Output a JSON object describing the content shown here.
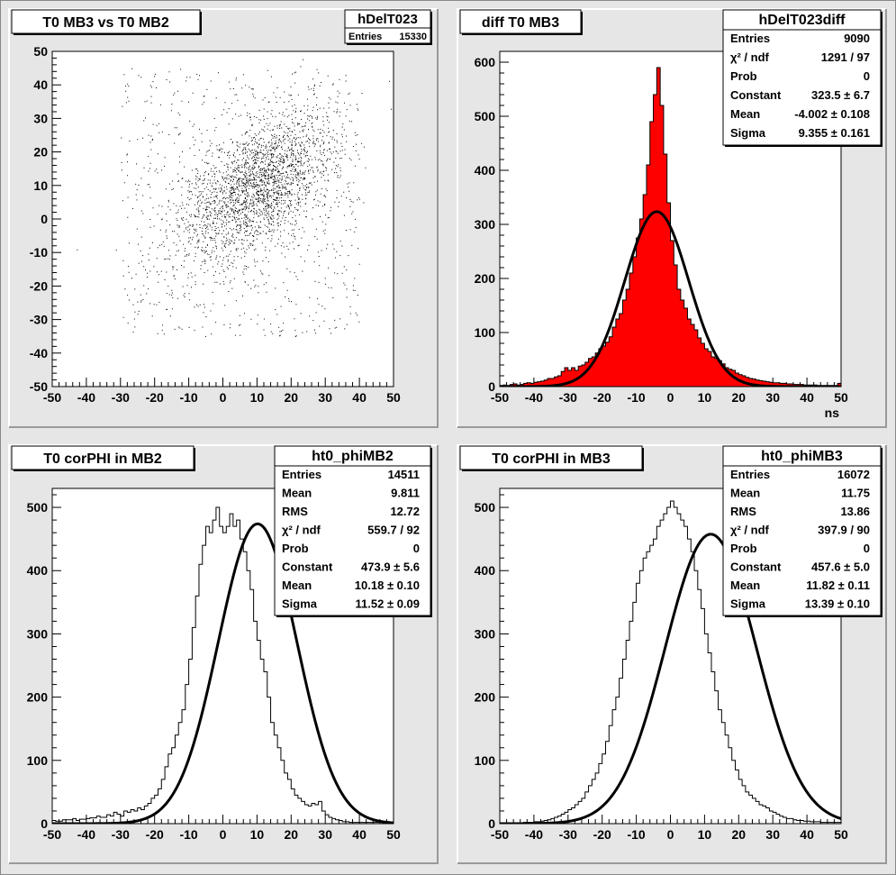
{
  "chart_data": [
    {
      "type": "scatter",
      "title": "T0 MB3 vs T0 MB2",
      "xlabel": "",
      "ylabel": "",
      "xlim": [
        -50,
        50
      ],
      "ylim": [
        -50,
        50
      ],
      "xticks": [
        -50,
        -40,
        -30,
        -20,
        -10,
        0,
        10,
        20,
        30,
        40,
        50
      ],
      "yticks": [
        -50,
        -40,
        -30,
        -20,
        -10,
        0,
        10,
        20,
        30,
        40,
        50
      ],
      "stats": {
        "name": "hDelT023",
        "rows": [
          {
            "label": "Entries",
            "value": "15330"
          }
        ]
      },
      "cluster": {
        "n_points": 15330,
        "mean_x": 10,
        "mean_y": 10,
        "sigma_x": 11,
        "sigma_y": 11,
        "correlation": 0.5
      }
    },
    {
      "type": "bar",
      "title": "diff T0 MB3",
      "xlabel": "ns",
      "ylabel": "",
      "xlim": [
        -50,
        50
      ],
      "ylim": [
        0,
        620
      ],
      "xticks": [
        -50,
        -40,
        -30,
        -20,
        -10,
        0,
        10,
        20,
        30,
        40,
        50
      ],
      "yticks": [
        0,
        100,
        200,
        300,
        400,
        500,
        600
      ],
      "fill": "#ff0000",
      "bin_width": 1,
      "x": [
        -50,
        -49,
        -48,
        -47,
        -46,
        -45,
        -44,
        -43,
        -42,
        -41,
        -40,
        -39,
        -38,
        -37,
        -36,
        -35,
        -34,
        -33,
        -32,
        -31,
        -30,
        -29,
        -28,
        -27,
        -26,
        -25,
        -24,
        -23,
        -22,
        -21,
        -20,
        -19,
        -18,
        -17,
        -16,
        -15,
        -14,
        -13,
        -12,
        -11,
        -10,
        -9,
        -8,
        -7,
        -6,
        -5,
        -4,
        -3,
        -2,
        -1,
        0,
        1,
        2,
        3,
        4,
        5,
        6,
        7,
        8,
        9,
        10,
        11,
        12,
        13,
        14,
        15,
        16,
        17,
        18,
        19,
        20,
        21,
        22,
        23,
        24,
        25,
        26,
        27,
        28,
        29,
        30,
        31,
        32,
        33,
        34,
        35,
        36,
        37,
        38,
        39,
        40,
        41,
        42,
        43,
        44,
        45,
        46,
        47,
        48,
        49
      ],
      "values": [
        2,
        3,
        2,
        4,
        5,
        3,
        4,
        6,
        7,
        6,
        8,
        9,
        10,
        12,
        15,
        15,
        18,
        20,
        28,
        35,
        30,
        35,
        30,
        38,
        40,
        45,
        52,
        55,
        62,
        70,
        75,
        82,
        92,
        110,
        125,
        135,
        160,
        180,
        210,
        240,
        275,
        310,
        355,
        410,
        490,
        540,
        590,
        520,
        430,
        340,
        270,
        225,
        180,
        160,
        145,
        125,
        115,
        105,
        90,
        80,
        70,
        65,
        55,
        52,
        48,
        42,
        35,
        32,
        30,
        25,
        22,
        20,
        17,
        15,
        14,
        12,
        11,
        10,
        9,
        8,
        7,
        7,
        6,
        6,
        5,
        5,
        4,
        4,
        4,
        3,
        3,
        3,
        3,
        2,
        2,
        2,
        2,
        2,
        2,
        6
      ],
      "fit": {
        "type": "gaussian",
        "constant": 323.5,
        "mean": -4.002,
        "sigma": 9.355
      },
      "stats": {
        "name": "hDelT023diff",
        "rows": [
          {
            "label": "Entries",
            "value": "9090"
          },
          {
            "label": "χ² / ndf",
            "value": "1291 / 97"
          },
          {
            "label": "Prob",
            "value": "0"
          },
          {
            "label": "Constant",
            "value": "323.5 ± 6.7"
          },
          {
            "label": "Mean",
            "value": "-4.002 ± 0.108"
          },
          {
            "label": "Sigma",
            "value": "9.355 ± 0.161"
          }
        ]
      }
    },
    {
      "type": "line",
      "title": "T0 corPHI in MB2",
      "xlabel": "",
      "ylabel": "",
      "xlim": [
        -50,
        50
      ],
      "ylim": [
        0,
        530
      ],
      "xticks": [
        -50,
        -40,
        -30,
        -20,
        -10,
        0,
        10,
        20,
        30,
        40,
        50
      ],
      "yticks": [
        0,
        100,
        200,
        300,
        400,
        500
      ],
      "bin_width": 1,
      "x": [
        -50,
        -49,
        -48,
        -47,
        -46,
        -45,
        -44,
        -43,
        -42,
        -41,
        -40,
        -39,
        -38,
        -37,
        -36,
        -35,
        -34,
        -33,
        -32,
        -31,
        -30,
        -29,
        -28,
        -27,
        -26,
        -25,
        -24,
        -23,
        -22,
        -21,
        -20,
        -19,
        -18,
        -17,
        -16,
        -15,
        -14,
        -13,
        -12,
        -11,
        -10,
        -9,
        -8,
        -7,
        -6,
        -5,
        -4,
        -3,
        -2,
        -1,
        0,
        1,
        2,
        3,
        4,
        5,
        6,
        7,
        8,
        9,
        10,
        11,
        12,
        13,
        14,
        15,
        16,
        17,
        18,
        19,
        20,
        21,
        22,
        23,
        24,
        25,
        26,
        27,
        28,
        29,
        30,
        31,
        32,
        33,
        34,
        35,
        36,
        37,
        38,
        39,
        40,
        41,
        42,
        43,
        44,
        45,
        46,
        47,
        48,
        49
      ],
      "values": [
        5,
        4,
        4,
        6,
        6,
        6,
        8,
        5,
        7,
        7,
        8,
        9,
        9,
        12,
        10,
        10,
        14,
        12,
        18,
        15,
        12,
        20,
        18,
        22,
        20,
        25,
        22,
        28,
        32,
        40,
        45,
        55,
        70,
        90,
        110,
        120,
        140,
        160,
        180,
        220,
        260,
        310,
        360,
        410,
        440,
        470,
        460,
        480,
        500,
        470,
        460,
        470,
        490,
        470,
        480,
        450,
        430,
        400,
        370,
        320,
        290,
        260,
        240,
        200,
        160,
        140,
        120,
        100,
        80,
        70,
        55,
        45,
        40,
        35,
        30,
        28,
        32,
        30,
        35,
        20,
        14,
        10,
        8,
        6,
        5,
        3,
        3,
        2,
        2,
        2,
        2,
        2,
        2,
        2,
        2,
        2,
        2,
        2,
        2,
        2
      ],
      "fit": {
        "type": "gaussian",
        "constant": 473.9,
        "mean": 10.18,
        "sigma": 11.52
      },
      "stats": {
        "name": "ht0_phiMB2",
        "rows": [
          {
            "label": "Entries",
            "value": "14511"
          },
          {
            "label": "Mean",
            "value": "9.811"
          },
          {
            "label": "RMS",
            "value": "12.72"
          },
          {
            "label": "χ² / ndf",
            "value": "559.7 / 92"
          },
          {
            "label": "Prob",
            "value": "0"
          },
          {
            "label": "Constant",
            "value": "473.9 ± 5.6"
          },
          {
            "label": "Mean",
            "value": "10.18 ± 0.10"
          },
          {
            "label": "Sigma",
            "value": "11.52 ± 0.09"
          }
        ]
      }
    },
    {
      "type": "line",
      "title": "T0 corPHI in MB3",
      "xlabel": "",
      "ylabel": "",
      "xlim": [
        -50,
        50
      ],
      "ylim": [
        0,
        530
      ],
      "xticks": [
        -50,
        -40,
        -30,
        -20,
        -10,
        0,
        10,
        20,
        30,
        40,
        50
      ],
      "yticks": [
        0,
        100,
        200,
        300,
        400,
        500
      ],
      "bin_width": 1,
      "x": [
        -50,
        -49,
        -48,
        -47,
        -46,
        -45,
        -44,
        -43,
        -42,
        -41,
        -40,
        -39,
        -38,
        -37,
        -36,
        -35,
        -34,
        -33,
        -32,
        -31,
        -30,
        -29,
        -28,
        -27,
        -26,
        -25,
        -24,
        -23,
        -22,
        -21,
        -20,
        -19,
        -18,
        -17,
        -16,
        -15,
        -14,
        -13,
        -12,
        -11,
        -10,
        -9,
        -8,
        -7,
        -6,
        -5,
        -4,
        -3,
        -2,
        -1,
        0,
        1,
        2,
        3,
        4,
        5,
        6,
        7,
        8,
        9,
        10,
        11,
        12,
        13,
        14,
        15,
        16,
        17,
        18,
        19,
        20,
        21,
        22,
        23,
        24,
        25,
        26,
        27,
        28,
        29,
        30,
        31,
        32,
        33,
        34,
        35,
        36,
        37,
        38,
        39,
        40,
        41,
        42,
        43,
        44,
        45,
        46,
        47,
        48,
        49
      ],
      "values": [
        0,
        0,
        0,
        0,
        1,
        1,
        1,
        2,
        2,
        2,
        3,
        3,
        4,
        5,
        6,
        8,
        10,
        12,
        15,
        18,
        22,
        25,
        30,
        35,
        40,
        50,
        60,
        70,
        80,
        95,
        110,
        130,
        155,
        180,
        200,
        230,
        260,
        290,
        320,
        350,
        380,
        400,
        420,
        430,
        440,
        450,
        470,
        480,
        490,
        500,
        510,
        500,
        490,
        480,
        470,
        450,
        430,
        400,
        370,
        340,
        300,
        270,
        240,
        210,
        180,
        160,
        140,
        120,
        100,
        85,
        70,
        60,
        50,
        45,
        40,
        35,
        30,
        28,
        25,
        20,
        18,
        15,
        12,
        10,
        8,
        8,
        6,
        5,
        5,
        4,
        4,
        3,
        3,
        3,
        2,
        2,
        2,
        2,
        2,
        2
      ],
      "fit": {
        "type": "gaussian",
        "constant": 457.6,
        "mean": 11.82,
        "sigma": 13.39
      },
      "stats": {
        "name": "ht0_phiMB3",
        "rows": [
          {
            "label": "Entries",
            "value": "16072"
          },
          {
            "label": "Mean",
            "value": "11.75"
          },
          {
            "label": "RMS",
            "value": "13.86"
          },
          {
            "label": "χ² / ndf",
            "value": "397.9 / 90"
          },
          {
            "label": "Prob",
            "value": "0"
          },
          {
            "label": "Constant",
            "value": "457.6 ± 5.0"
          },
          {
            "label": "Mean",
            "value": "11.82 ± 0.11"
          },
          {
            "label": "Sigma",
            "value": "13.39 ± 0.10"
          }
        ]
      }
    }
  ]
}
